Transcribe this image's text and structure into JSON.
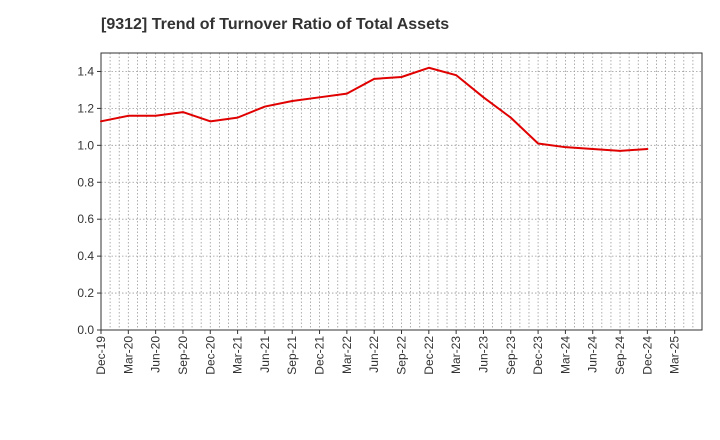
{
  "page": {
    "title": "[9312]  Trend of Turnover Ratio of Total Assets"
  },
  "chart_data": {
    "type": "line",
    "title": "[9312]  Trend of Turnover Ratio of Total Assets",
    "xlabel": "",
    "ylabel": "",
    "ylim": [
      0,
      1.5
    ],
    "yticks": [
      0.0,
      0.2,
      0.4,
      0.6,
      0.8,
      1.0,
      1.2,
      1.4
    ],
    "ytick_labels": [
      "0.0",
      "0.2",
      "0.4",
      "0.6",
      "0.8",
      "1.0",
      "1.2",
      "1.4"
    ],
    "xtick_labels": [
      "Dec-19",
      "Mar-20",
      "Jun-20",
      "Sep-20",
      "Dec-20",
      "Mar-21",
      "Jun-21",
      "Sep-21",
      "Dec-21",
      "Mar-22",
      "Jun-22",
      "Sep-22",
      "Dec-22",
      "Mar-23",
      "Jun-23",
      "Sep-23",
      "Dec-23",
      "Mar-24",
      "Jun-24",
      "Sep-24",
      "Dec-24",
      "Mar-25"
    ],
    "grid": true,
    "series": [
      {
        "color": "#e00000",
        "x": [
          "Dec-19",
          "Mar-20",
          "Jun-20",
          "Sep-20",
          "Dec-20",
          "Mar-21",
          "Jun-21",
          "Sep-21",
          "Dec-21",
          "Mar-22",
          "Jun-22",
          "Sep-22",
          "Dec-22",
          "Mar-23",
          "Jun-23",
          "Sep-23",
          "Dec-23",
          "Mar-24",
          "Jun-24",
          "Sep-24",
          "Dec-24"
        ],
        "values": [
          1.13,
          1.16,
          1.16,
          1.18,
          1.13,
          1.15,
          1.21,
          1.24,
          1.26,
          1.28,
          1.36,
          1.37,
          1.42,
          1.38,
          1.26,
          1.15,
          1.01,
          0.99,
          0.98,
          0.97,
          0.98
        ]
      }
    ]
  }
}
